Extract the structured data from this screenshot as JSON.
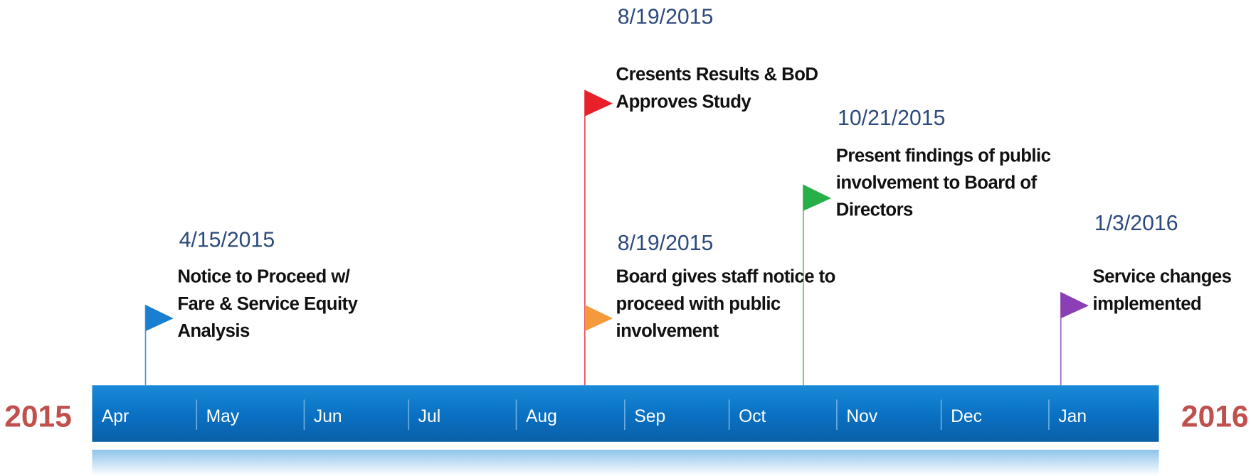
{
  "start_year": "2015",
  "end_year": "2016",
  "months": [
    "Apr",
    "May",
    "Jun",
    "Jul",
    "Aug",
    "Sep",
    "Oct",
    "Nov",
    "Dec",
    "Jan"
  ],
  "events": [
    {
      "date": "4/15/2015",
      "lines": [
        "Notice to Proceed w/",
        "Fare & Service Equity",
        "Analysis"
      ],
      "color": "#1a7fd0"
    },
    {
      "date": "8/19/2015",
      "lines": [
        "Cresents Results & BoD",
        "Approves Study"
      ],
      "color": "#e8202a"
    },
    {
      "date": "8/19/2015",
      "lines": [
        "Board gives staff notice to",
        "proceed with public",
        "involvement"
      ],
      "color": "#f59a3c"
    },
    {
      "date": "10/21/2015",
      "lines": [
        "Present findings of public",
        "involvement to Board of",
        "Directors"
      ],
      "color": "#27b04a"
    },
    {
      "date": "1/3/2016",
      "lines": [
        "Service changes",
        "implemented"
      ],
      "color": "#8a3fb5"
    }
  ]
}
